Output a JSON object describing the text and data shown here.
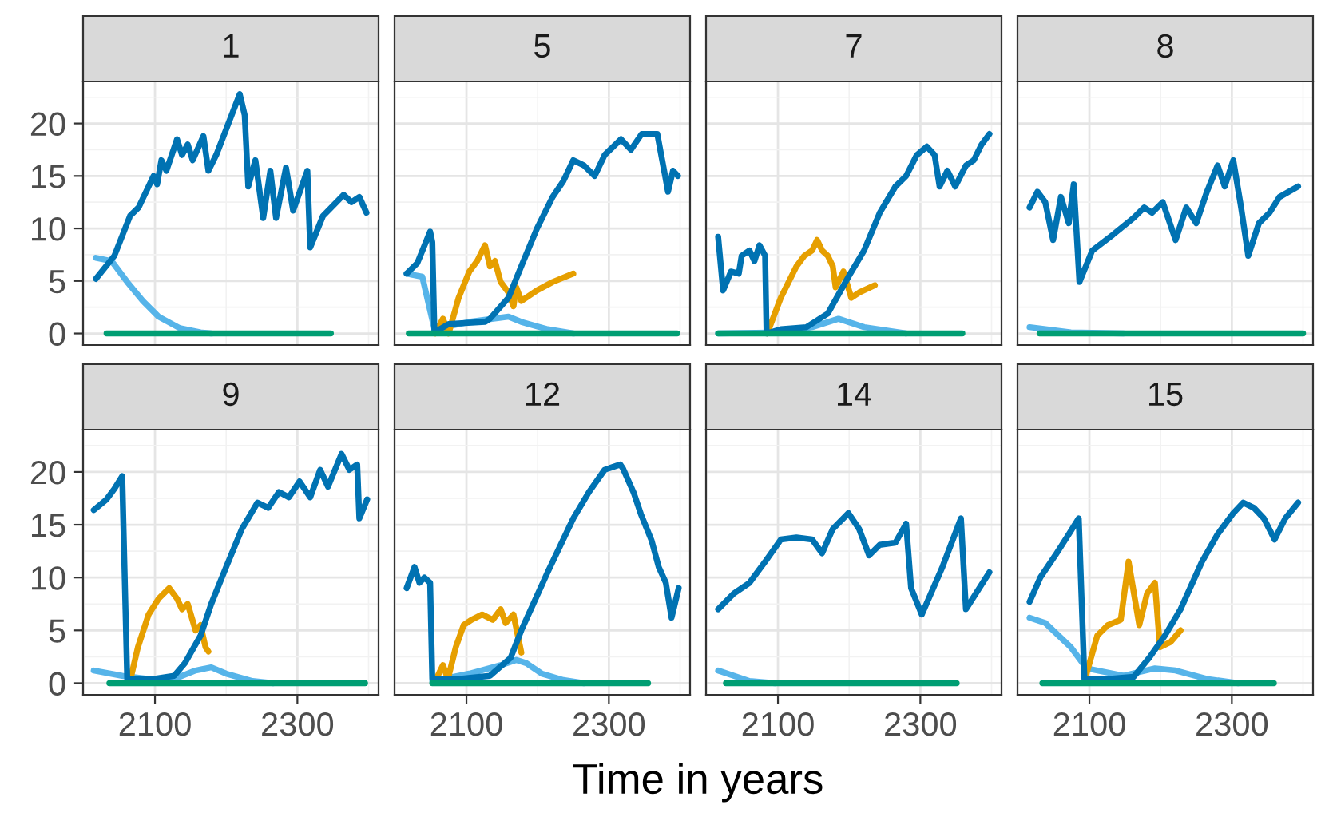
{
  "chart_data": [
    {
      "type": "line",
      "title": "1",
      "xlim": [
        1999,
        2414
      ],
      "ylim": [
        -1.1,
        24
      ],
      "tick_labels": "y",
      "grid": true,
      "xticks": [
        {
          "value": 2000,
          "label": null
        },
        2100,
        {
          "value": 2200,
          "label": null
        },
        2300,
        {
          "value": 2400,
          "label": null
        }
      ],
      "yticks": [
        0,
        {
          "value": 2.5,
          "label": null
        },
        5,
        {
          "value": 7.5,
          "label": null
        },
        10,
        {
          "value": 12.5,
          "label": null
        },
        15,
        {
          "value": 17.5,
          "label": null
        },
        20,
        {
          "value": 22.5,
          "label": null
        }
      ],
      "series": [
        {
          "color": "#56B4E9",
          "x": [
            2017,
            2039,
            2061,
            2083,
            2105,
            2135,
            2164,
            2179
          ],
          "values": [
            7.2,
            6.9,
            4.9,
            3.1,
            1.6,
            0.5,
            0.1,
            0
          ]
        },
        {
          "color": "#0072B2",
          "x": [
            2017,
            2043,
            2065,
            2077,
            2098,
            2103,
            2109,
            2116,
            2131,
            2138,
            2146,
            2153,
            2168,
            2175,
            2186,
            2219,
            2226,
            2231,
            2241,
            2252,
            2262,
            2270,
            2284,
            2294,
            2314,
            2318,
            2336,
            2365,
            2376,
            2387,
            2397
          ],
          "values": [
            5.2,
            7.4,
            11.2,
            12.0,
            15.0,
            14.2,
            16.5,
            15.5,
            18.5,
            17.0,
            18.0,
            16.5,
            18.8,
            15.5,
            17.0,
            22.8,
            20.8,
            14.0,
            16.5,
            11.0,
            15.5,
            11.0,
            15.8,
            11.7,
            15.5,
            8.2,
            11.2,
            13.2,
            12.5,
            13.0,
            11.5
          ]
        },
        {
          "color": "#009E73",
          "x": [
            2032,
            2347
          ],
          "values": [
            0,
            0
          ]
        }
      ]
    },
    {
      "type": "line",
      "title": "5",
      "xlim": [
        1999,
        2414
      ],
      "ylim": [
        -1.1,
        24
      ],
      "tick_labels": false,
      "grid": true,
      "xticks": [
        {
          "value": 2000,
          "label": null
        },
        2100,
        {
          "value": 2200,
          "label": null
        },
        2300,
        {
          "value": 2400,
          "label": null
        }
      ],
      "yticks": [
        0,
        {
          "value": 2.5,
          "label": null
        },
        5,
        {
          "value": 7.5,
          "label": null
        },
        10,
        {
          "value": 12.5,
          "label": null
        },
        15,
        {
          "value": 17.5,
          "label": null
        },
        20,
        {
          "value": 22.5,
          "label": null
        }
      ],
      "series": [
        {
          "color": "#56B4E9",
          "x": [
            2016,
            2038,
            2055,
            2104,
            2159,
            2177,
            2214,
            2250
          ],
          "values": [
            5.7,
            5.4,
            0.4,
            1.1,
            1.6,
            1.1,
            0.4,
            0
          ]
        },
        {
          "color": "#E69F00",
          "x": [
            2056,
            2067,
            2075,
            2089,
            2104,
            2115,
            2126,
            2133,
            2140,
            2148,
            2159,
            2166,
            2170,
            2177,
            2199,
            2221,
            2250
          ],
          "values": [
            0,
            1.4,
            0,
            3.4,
            5.9,
            6.9,
            8.4,
            6.4,
            6.9,
            4.9,
            3.9,
            2.6,
            4.4,
            3.1,
            4.1,
            4.9,
            5.7
          ]
        },
        {
          "color": "#0072B2",
          "x": [
            2016,
            2031,
            2049,
            2052,
            2055,
            2075,
            2126,
            2133,
            2159,
            2177,
            2199,
            2221,
            2236,
            2250,
            2265,
            2280,
            2294,
            2317,
            2331,
            2346,
            2368,
            2379,
            2383,
            2390,
            2397
          ],
          "values": [
            5.7,
            6.7,
            9.7,
            8.7,
            0.1,
            0.9,
            1.1,
            1.4,
            3.4,
            6.4,
            10.0,
            13.0,
            14.5,
            16.5,
            16.0,
            15.0,
            17.0,
            18.5,
            17.5,
            19.0,
            19.0,
            15.0,
            13.5,
            15.5,
            15.0
          ]
        },
        {
          "color": "#009E73",
          "x": [
            2019,
            2396
          ],
          "values": [
            0,
            0
          ]
        }
      ]
    },
    {
      "type": "line",
      "title": "7",
      "xlim": [
        1999,
        2414
      ],
      "ylim": [
        -1.1,
        24
      ],
      "tick_labels": false,
      "grid": true,
      "xticks": [
        {
          "value": 2000,
          "label": null
        },
        2100,
        {
          "value": 2200,
          "label": null
        },
        2300,
        {
          "value": 2400,
          "label": null
        }
      ],
      "yticks": [
        0,
        {
          "value": 2.5,
          "label": null
        },
        5,
        {
          "value": 7.5,
          "label": null
        },
        10,
        {
          "value": 12.5,
          "label": null
        },
        15,
        {
          "value": 17.5,
          "label": null
        },
        20,
        {
          "value": 22.5,
          "label": null
        }
      ],
      "series": [
        {
          "color": "#56B4E9",
          "x": [
            2016,
            2104,
            2148,
            2185,
            2221,
            2280
          ],
          "values": [
            0,
            0.1,
            0.6,
            1.4,
            0.6,
            0
          ]
        },
        {
          "color": "#E69F00",
          "x": [
            2085,
            2104,
            2115,
            2126,
            2137,
            2148,
            2155,
            2162,
            2170,
            2177,
            2181,
            2192,
            2203,
            2214,
            2236
          ],
          "values": [
            0,
            3.4,
            4.9,
            6.4,
            7.4,
            7.9,
            8.9,
            7.9,
            7.4,
            6.4,
            4.4,
            5.9,
            3.4,
            3.9,
            4.6
          ]
        },
        {
          "color": "#0072B2",
          "x": [
            2016,
            2023,
            2034,
            2045,
            2049,
            2060,
            2067,
            2074,
            2082,
            2084,
            2104,
            2140,
            2170,
            2199,
            2221,
            2243,
            2265,
            2280,
            2295,
            2309,
            2320,
            2327,
            2338,
            2349,
            2364,
            2375,
            2386,
            2397
          ],
          "values": [
            9.2,
            4.1,
            5.9,
            5.7,
            7.4,
            7.9,
            6.9,
            8.4,
            7.4,
            0,
            0.4,
            0.6,
            1.9,
            5.4,
            7.9,
            11.5,
            14.0,
            15.0,
            17.0,
            17.8,
            17.0,
            14.0,
            15.5,
            14.0,
            16.0,
            16.5,
            18.0,
            19.0
          ]
        },
        {
          "color": "#009E73",
          "x": [
            2016,
            2359
          ],
          "values": [
            0,
            0
          ]
        }
      ]
    },
    {
      "type": "line",
      "title": "8",
      "xlim": [
        1999,
        2414
      ],
      "ylim": [
        -1.1,
        24
      ],
      "tick_labels": false,
      "grid": true,
      "xticks": [
        {
          "value": 2000,
          "label": null
        },
        2100,
        {
          "value": 2200,
          "label": null
        },
        2300,
        {
          "value": 2400,
          "label": null
        }
      ],
      "yticks": [
        0,
        {
          "value": 2.5,
          "label": null
        },
        5,
        {
          "value": 7.5,
          "label": null
        },
        10,
        {
          "value": 12.5,
          "label": null
        },
        15,
        {
          "value": 17.5,
          "label": null
        },
        20,
        {
          "value": 22.5,
          "label": null
        }
      ],
      "series": [
        {
          "color": "#56B4E9",
          "x": [
            2016,
            2074,
            2148
          ],
          "values": [
            0.6,
            0.1,
            0
          ]
        },
        {
          "color": "#0072B2",
          "x": [
            2016,
            2027,
            2038,
            2049,
            2060,
            2071,
            2078,
            2086,
            2104,
            2133,
            2162,
            2177,
            2188,
            2203,
            2221,
            2236,
            2250,
            2265,
            2280,
            2290,
            2302,
            2313,
            2323,
            2338,
            2353,
            2367,
            2393
          ],
          "values": [
            12.0,
            13.5,
            12.5,
            8.9,
            13.0,
            10.5,
            14.2,
            4.9,
            7.9,
            9.4,
            11.0,
            12.0,
            11.5,
            12.5,
            8.9,
            12.0,
            10.5,
            13.5,
            16.0,
            14.0,
            16.5,
            12.0,
            7.4,
            10.5,
            11.5,
            13.0,
            14.0
          ]
        },
        {
          "color": "#009E73",
          "x": [
            2030,
            2400
          ],
          "values": [
            0,
            0
          ]
        }
      ]
    },
    {
      "type": "line",
      "title": "9",
      "xlabel": "Time in years",
      "xlim": [
        1999,
        2414
      ],
      "ylim": [
        -1.1,
        24
      ],
      "grid": true,
      "xticks": [
        {
          "value": 2000,
          "label": null
        },
        2100,
        {
          "value": 2200,
          "label": null
        },
        2300,
        {
          "value": 2400,
          "label": null
        }
      ],
      "yticks": [
        0,
        {
          "value": 2.5,
          "label": null
        },
        5,
        {
          "value": 7.5,
          "label": null
        },
        10,
        {
          "value": 12.5,
          "label": null
        },
        15,
        {
          "value": 17.5,
          "label": null
        },
        20,
        {
          "value": 22.5,
          "label": null
        }
      ],
      "series": [
        {
          "color": "#56B4E9",
          "x": [
            2014,
            2054,
            2091,
            2127,
            2157,
            2179,
            2200,
            2237,
            2266
          ],
          "values": [
            1.2,
            0.7,
            0.4,
            0.4,
            1.2,
            1.5,
            0.9,
            0.2,
            0
          ]
        },
        {
          "color": "#E69F00",
          "x": [
            2065,
            2076,
            2091,
            2105,
            2120,
            2131,
            2138,
            2146,
            2157,
            2164,
            2171,
            2175
          ],
          "values": [
            0.2,
            3.4,
            6.5,
            8.0,
            9.0,
            8.0,
            7.0,
            7.5,
            5.0,
            5.5,
            3.4,
            3.0
          ]
        },
        {
          "color": "#0072B2",
          "x": [
            2014,
            2032,
            2043,
            2054,
            2061,
            2098,
            2127,
            2142,
            2164,
            2179,
            2200,
            2222,
            2244,
            2259,
            2274,
            2288,
            2303,
            2318,
            2332,
            2343,
            2362,
            2373,
            2384,
            2387,
            2398
          ],
          "values": [
            16.4,
            17.4,
            18.4,
            19.6,
            0.4,
            0.4,
            0.7,
            1.9,
            4.5,
            7.5,
            11.0,
            14.6,
            17.1,
            16.6,
            18.1,
            17.6,
            19.1,
            17.6,
            20.2,
            18.6,
            21.7,
            20.2,
            20.7,
            15.6,
            17.4
          ]
        },
        {
          "color": "#009E73",
          "x": [
            2036,
            2395
          ],
          "values": [
            0,
            0
          ]
        }
      ]
    },
    {
      "type": "line",
      "title": "12",
      "xlim": [
        1999,
        2414
      ],
      "ylim": [
        -1.1,
        24
      ],
      "tick_labels": "x",
      "grid": true,
      "xticks": [
        {
          "value": 2000,
          "label": null
        },
        2100,
        {
          "value": 2200,
          "label": null
        },
        2300,
        {
          "value": 2400,
          "label": null
        }
      ],
      "yticks": [
        0,
        {
          "value": 2.5,
          "label": null
        },
        5,
        {
          "value": 7.5,
          "label": null
        },
        10,
        {
          "value": 12.5,
          "label": null
        },
        15,
        {
          "value": 17.5,
          "label": null
        },
        20,
        {
          "value": 22.5,
          "label": null
        }
      ],
      "series": [
        {
          "color": "#56B4E9",
          "x": [
            2052,
            2104,
            2148,
            2170,
            2184,
            2206,
            2236,
            2265
          ],
          "values": [
            0.2,
            0.9,
            1.7,
            2.2,
            1.9,
            0.9,
            0.3,
            0
          ]
        },
        {
          "color": "#E69F00",
          "x": [
            2056,
            2067,
            2074,
            2085,
            2096,
            2107,
            2122,
            2137,
            2148,
            2155,
            2166,
            2177
          ],
          "values": [
            0.2,
            1.7,
            0.4,
            3.4,
            5.5,
            6.0,
            6.5,
            6.0,
            7.0,
            5.7,
            6.5,
            2.9
          ]
        },
        {
          "color": "#0072B2",
          "x": [
            2016,
            2027,
            2034,
            2041,
            2049,
            2052,
            2089,
            2133,
            2162,
            2177,
            2214,
            2250,
            2272,
            2294,
            2316,
            2320,
            2335,
            2345,
            2360,
            2370,
            2380,
            2388,
            2398
          ],
          "values": [
            9.0,
            11.0,
            9.5,
            10.0,
            9.5,
            0.4,
            0.4,
            0.7,
            2.4,
            5.0,
            10.5,
            15.6,
            18.1,
            20.2,
            20.7,
            20.3,
            18.0,
            16.0,
            13.5,
            11.0,
            9.5,
            6.2,
            9.0
          ]
        },
        {
          "color": "#009E73",
          "x": [
            2052,
            2355
          ],
          "values": [
            0,
            0
          ]
        }
      ]
    },
    {
      "type": "line",
      "title": "14",
      "xlim": [
        1999,
        2414
      ],
      "ylim": [
        -1.1,
        24
      ],
      "tick_labels": "x",
      "grid": true,
      "xticks": [
        {
          "value": 2000,
          "label": null
        },
        2100,
        {
          "value": 2200,
          "label": null
        },
        2300,
        {
          "value": 2400,
          "label": null
        }
      ],
      "yticks": [
        0,
        {
          "value": 2.5,
          "label": null
        },
        5,
        {
          "value": 7.5,
          "label": null
        },
        10,
        {
          "value": 12.5,
          "label": null
        },
        15,
        {
          "value": 17.5,
          "label": null
        },
        20,
        {
          "value": 22.5,
          "label": null
        }
      ],
      "series": [
        {
          "color": "#56B4E9",
          "x": [
            2016,
            2060,
            2096
          ],
          "values": [
            1.2,
            0.2,
            0
          ]
        },
        {
          "color": "#0072B2",
          "x": [
            2016,
            2038,
            2060,
            2082,
            2104,
            2126,
            2148,
            2162,
            2177,
            2199,
            2214,
            2228,
            2243,
            2265,
            2280,
            2287,
            2302,
            2331,
            2357,
            2364,
            2397
          ],
          "values": [
            7.0,
            8.5,
            9.5,
            11.5,
            13.6,
            13.8,
            13.6,
            12.3,
            14.6,
            16.1,
            14.6,
            12.1,
            13.1,
            13.3,
            15.1,
            9.0,
            6.5,
            11.0,
            15.6,
            7.0,
            10.5
          ]
        },
        {
          "color": "#009E73",
          "x": [
            2027,
            2351
          ],
          "values": [
            0,
            0
          ]
        }
      ]
    },
    {
      "type": "line",
      "title": "15",
      "xlim": [
        1999,
        2414
      ],
      "ylim": [
        -1.1,
        24
      ],
      "tick_labels": "x",
      "grid": true,
      "xticks": [
        {
          "value": 2000,
          "label": null
        },
        2100,
        {
          "value": 2200,
          "label": null
        },
        2300,
        {
          "value": 2400,
          "label": null
        }
      ],
      "yticks": [
        0,
        {
          "value": 2.5,
          "label": null
        },
        5,
        {
          "value": 7.5,
          "label": null
        },
        10,
        {
          "value": 12.5,
          "label": null
        },
        15,
        {
          "value": 17.5,
          "label": null
        },
        20,
        {
          "value": 22.5,
          "label": null
        }
      ],
      "series": [
        {
          "color": "#56B4E9",
          "x": [
            2016,
            2038,
            2074,
            2096,
            2148,
            2192,
            2221,
            2265,
            2309
          ],
          "values": [
            6.2,
            5.7,
            3.4,
            1.4,
            0.7,
            1.4,
            1.2,
            0.4,
            0
          ]
        },
        {
          "color": "#E69F00",
          "x": [
            2093,
            2111,
            2126,
            2144,
            2155,
            2170,
            2181,
            2192,
            2199,
            2214,
            2228
          ],
          "values": [
            0.2,
            4.5,
            5.5,
            6.0,
            11.5,
            5.5,
            8.5,
            9.5,
            3.4,
            3.9,
            5.0
          ]
        },
        {
          "color": "#0072B2",
          "x": [
            2016,
            2031,
            2052,
            2071,
            2085,
            2093,
            2126,
            2162,
            2184,
            2206,
            2228,
            2258,
            2280,
            2302,
            2316,
            2331,
            2345,
            2360,
            2375,
            2393
          ],
          "values": [
            7.7,
            10.0,
            12.1,
            14.1,
            15.6,
            0.4,
            0.4,
            0.6,
            2.4,
            4.5,
            7.0,
            11.5,
            14.1,
            16.1,
            17.1,
            16.6,
            15.6,
            13.6,
            15.6,
            17.1
          ]
        },
        {
          "color": "#009E73",
          "x": [
            2034,
            2359
          ],
          "values": [
            0,
            0
          ]
        }
      ]
    }
  ]
}
